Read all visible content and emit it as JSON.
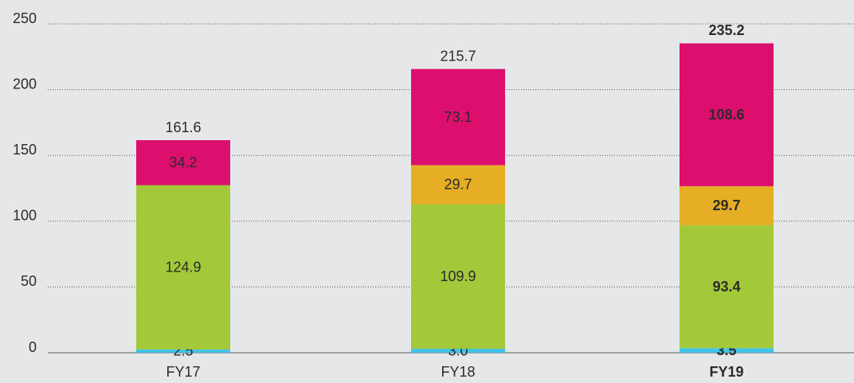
{
  "chart_data": {
    "type": "stacked_bar",
    "categories": [
      "FY17",
      "FY18",
      "FY19"
    ],
    "series": [
      {
        "color": "#3fc4e8",
        "values": [
          2.5,
          3.0,
          3.5
        ],
        "value_labels": [
          "2.5",
          "3.0",
          "3.5"
        ]
      },
      {
        "color": "#a3c83a",
        "values": [
          124.9,
          109.9,
          93.4
        ],
        "value_labels": [
          "124.9",
          "109.9",
          "93.4"
        ]
      },
      {
        "color": "#e6ae25",
        "values": [
          null,
          29.7,
          29.7
        ],
        "value_labels": [
          null,
          "29.7",
          "29.7"
        ]
      },
      {
        "color": "#dc0f6e",
        "values": [
          34.2,
          73.1,
          108.6
        ],
        "value_labels": [
          "34.2",
          "73.1",
          "108.6"
        ]
      }
    ],
    "totals": [
      161.6,
      215.7,
      235.2
    ],
    "bold_categories": [
      "FY19"
    ],
    "ylim": [
      0,
      250
    ],
    "yticks": [
      0,
      50,
      100,
      150,
      200,
      250
    ],
    "grid": true
  }
}
